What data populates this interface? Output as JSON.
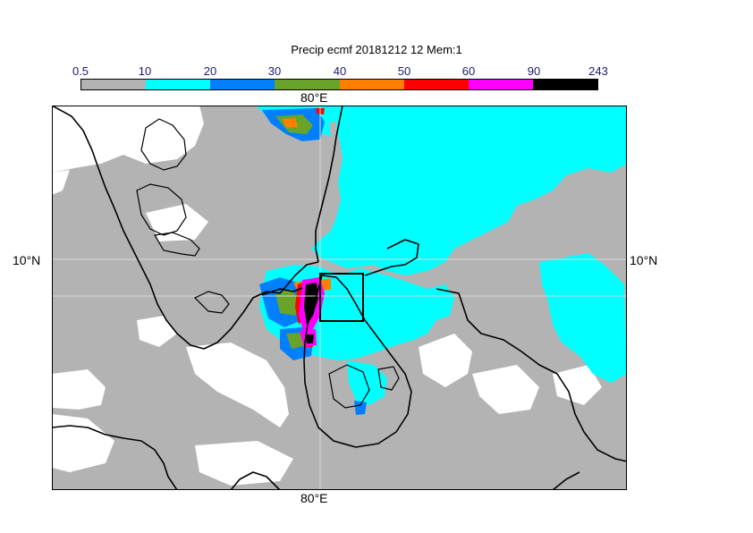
{
  "title": "Precip ecmf 20181212 12 Mem:1",
  "colorbar": {
    "ticks": [
      "0.5",
      "10",
      "20",
      "30",
      "40",
      "50",
      "60",
      "90",
      "243"
    ],
    "colors": [
      "#b3b3b3",
      "#00ffff",
      "#0080ff",
      "#6aa329",
      "#ff8000",
      "#ff0000",
      "#ff00ff",
      "#000000"
    ]
  },
  "axes": {
    "lon_top": "80°E",
    "lon_bottom": "80°E",
    "lat_left": "10°N",
    "lat_right": "10°N"
  }
}
